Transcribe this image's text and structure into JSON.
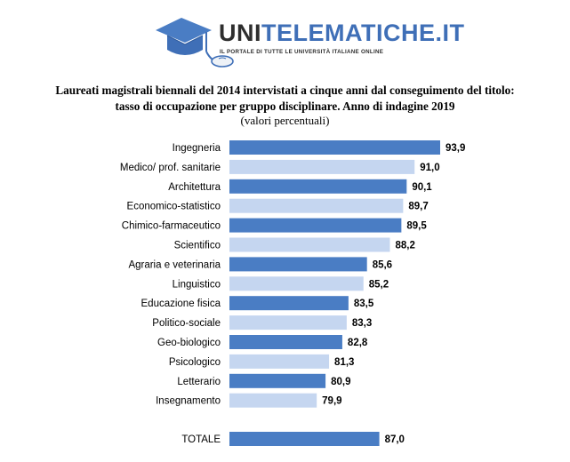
{
  "brand": {
    "name_part1": "UNI",
    "name_part2": "TELEMATICHE.IT",
    "tagline": "IL PORTALE DI TUTTE LE UNIVERSITÀ ITALIANE ONLINE",
    "color_dark": "#2e2e2e",
    "color_blue": "#3f6fb7"
  },
  "chart_data": {
    "type": "bar",
    "orientation": "horizontal",
    "title_line1": "Laureati magistrali biennali del 2014 intervistati a cinque anni dal conseguimento del titolo:",
    "title_line2": "tasso di occupazione per gruppo disciplinare. Anno di indagine 2019",
    "subtitle": "(valori percentuali)",
    "categories": [
      "Ingegneria",
      "Medico/ prof. sanitarie",
      "Architettura",
      "Economico-statistico",
      "Chimico-farmaceutico",
      "Scientifico",
      "Agraria e veterinaria",
      "Linguistico",
      "Educazione fisica",
      "Politico-sociale",
      "Geo-biologico",
      "Psicologico",
      "Letterario",
      "Insegnamento"
    ],
    "values": [
      93.9,
      91.0,
      90.1,
      89.7,
      89.5,
      88.2,
      85.6,
      85.2,
      83.5,
      83.3,
      82.8,
      81.3,
      80.9,
      79.9
    ],
    "value_labels": [
      "93,9",
      "91,0",
      "90,1",
      "89,7",
      "89,5",
      "88,2",
      "85,6",
      "85,2",
      "83,5",
      "83,3",
      "82,8",
      "81,3",
      "80,9",
      "79,9"
    ],
    "total": {
      "label": "TOTALE",
      "value": 87.0,
      "value_label": "87,0"
    },
    "xlim": [
      70,
      100
    ],
    "colors": {
      "dark": "#4a7dc4",
      "light": "#c5d6f0",
      "total": "#4a7dc4"
    }
  }
}
